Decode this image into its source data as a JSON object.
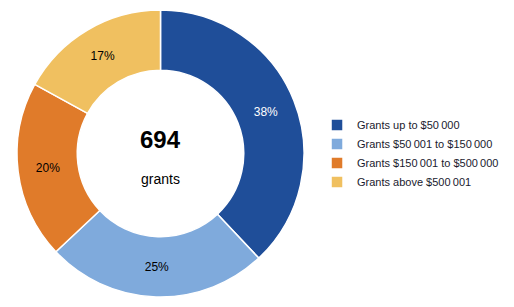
{
  "chart_data": {
    "type": "pie",
    "categories": [
      "Grants up to $50 000",
      "Grants $50 001 to $150 000",
      "Grants $150 001 to $500 000",
      "Grants above $500 001"
    ],
    "values": [
      38,
      25,
      20,
      17
    ],
    "value_labels": [
      "38%",
      "25%",
      "20%",
      "17%"
    ],
    "colors": [
      "#1F4E99",
      "#7FAADC",
      "#E07B2A",
      "#F0C060"
    ],
    "annotations": [
      "694",
      "grants"
    ],
    "data_labels": true,
    "legend": "right"
  }
}
